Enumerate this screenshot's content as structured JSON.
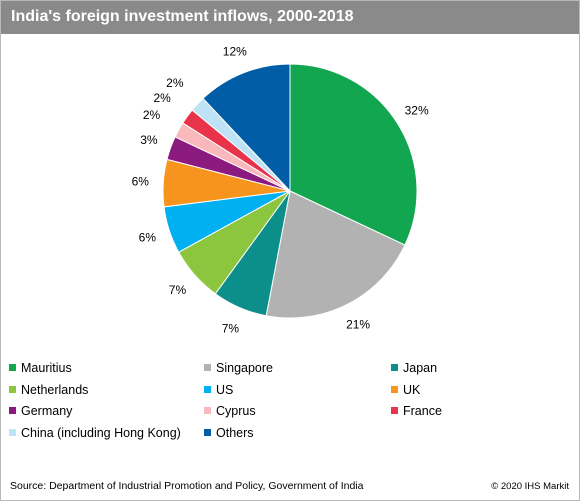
{
  "title": "India's foreign investment inflows, 2000-2018",
  "source": "Source: Department of Industrial Promotion and Policy, Government of India",
  "copyright": "© 2020 IHS Markit",
  "chart_data": {
    "type": "pie",
    "title": "India's foreign investment inflows, 2000-2018",
    "unit": "%",
    "legend_position": "bottom",
    "slices": [
      {
        "name": "Mauritius",
        "value": 32,
        "label": "32%",
        "color": "#13a651"
      },
      {
        "name": "Singapore",
        "value": 21,
        "label": "21%",
        "color": "#b2b2b2"
      },
      {
        "name": "Japan",
        "value": 7,
        "label": "7%",
        "color": "#0c8e8a"
      },
      {
        "name": "Netherlands",
        "value": 7,
        "label": "7%",
        "color": "#8cc63e"
      },
      {
        "name": "US",
        "value": 6,
        "label": "6%",
        "color": "#00b0f0"
      },
      {
        "name": "UK",
        "value": 6,
        "label": "6%",
        "color": "#f7941d"
      },
      {
        "name": "Germany",
        "value": 3,
        "label": "3%",
        "color": "#8b1a7e"
      },
      {
        "name": "Cyprus",
        "value": 2,
        "label": "2%",
        "color": "#f8b8bc"
      },
      {
        "name": "France",
        "value": 2,
        "label": "2%",
        "color": "#e8334a"
      },
      {
        "name": "China (including Hong Kong)",
        "value": 2,
        "label": "2%",
        "color": "#bfe3f6"
      },
      {
        "name": "Others",
        "value": 12,
        "label": "12%",
        "color": "#005da6"
      }
    ]
  }
}
